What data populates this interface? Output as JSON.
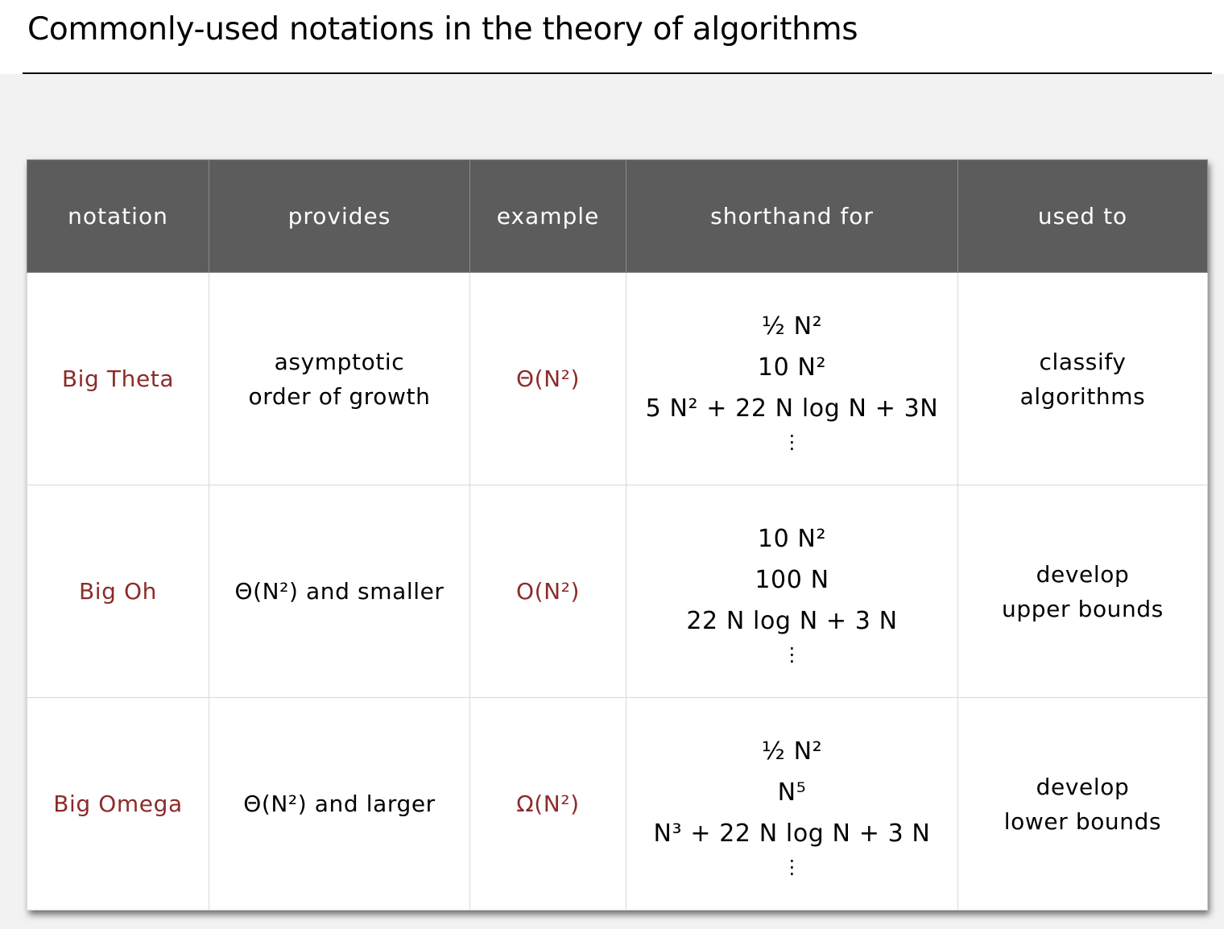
{
  "title": "Commonly-used notations in the theory of algorithms",
  "headers": [
    "notation",
    "provides",
    "example",
    "shorthand for",
    "used to"
  ],
  "rows": [
    {
      "notation": "Big Theta",
      "provides": [
        "asymptotic",
        "order of growth"
      ],
      "example": "Θ(N²)",
      "shorthand": [
        "½ N²",
        "10 N²",
        "5 N² + 22 N log N + 3N",
        "⋮"
      ],
      "used_to": [
        "classify",
        "algorithms"
      ]
    },
    {
      "notation": "Big Oh",
      "provides": [
        "Θ(N²) and smaller"
      ],
      "example": "O(N²)",
      "shorthand": [
        "10 N²",
        "100 N",
        "22 N log N + 3 N",
        "⋮"
      ],
      "used_to": [
        "develop",
        "upper bounds"
      ]
    },
    {
      "notation": "Big Omega",
      "provides": [
        "Θ(N²) and larger"
      ],
      "example": "Ω(N²)",
      "shorthand": [
        "½ N²",
        "N⁵",
        "N³ + 22 N log N + 3 N",
        "⋮"
      ],
      "used_to": [
        "develop",
        "lower bounds"
      ]
    }
  ],
  "colors": {
    "header_bg": "#5c5c5c",
    "accent_red": "#8b2c2a"
  }
}
